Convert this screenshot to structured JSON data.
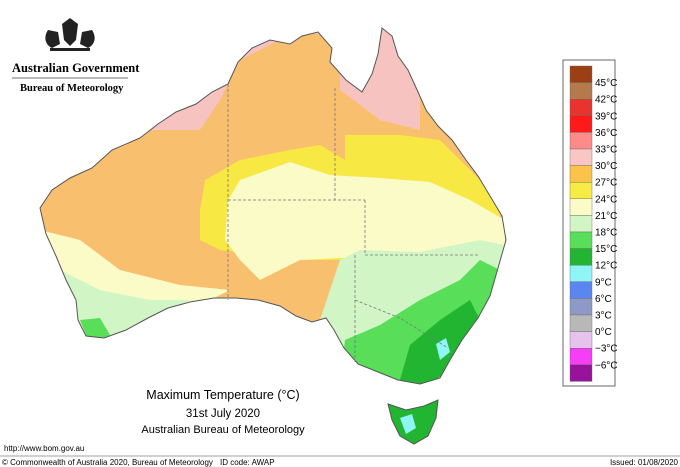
{
  "header": {
    "government": "Australian Government",
    "agency": "Bureau of Meteorology"
  },
  "legend": {
    "colors": [
      "#9c3f14",
      "#b57a4c",
      "#e8332f",
      "#ff1a1a",
      "#ff8a8a",
      "#fac6c4",
      "#fbc349",
      "#f7ec43",
      "#fbfbc7",
      "#d2f5c6",
      "#58de58",
      "#22b531",
      "#8ff5f7",
      "#5a86f0",
      "#8f99c8",
      "#b8b8b8",
      "#e5c3ec",
      "#f53ef5",
      "#98129c"
    ],
    "labels": [
      "45°C",
      "42°C",
      "39°C",
      "36°C",
      "33°C",
      "30°C",
      "27°C",
      "24°C",
      "21°C",
      "18°C",
      "15°C",
      "12°C",
      "9°C",
      "6°C",
      "3°C",
      "0°C",
      "−3°C",
      "−6°C"
    ]
  },
  "map": {
    "title": "Maximum Temperature (°C)",
    "date": "31st July 2020",
    "source": "Australian Bureau of Meteorology"
  },
  "footer": {
    "url": "http://www.bom.gov.au",
    "copyright": "© Commonwealth of Australia 2020, Bureau of Meteorology",
    "id_code": "ID code: AWAP",
    "issued": "Issued: 01/08/2020"
  }
}
